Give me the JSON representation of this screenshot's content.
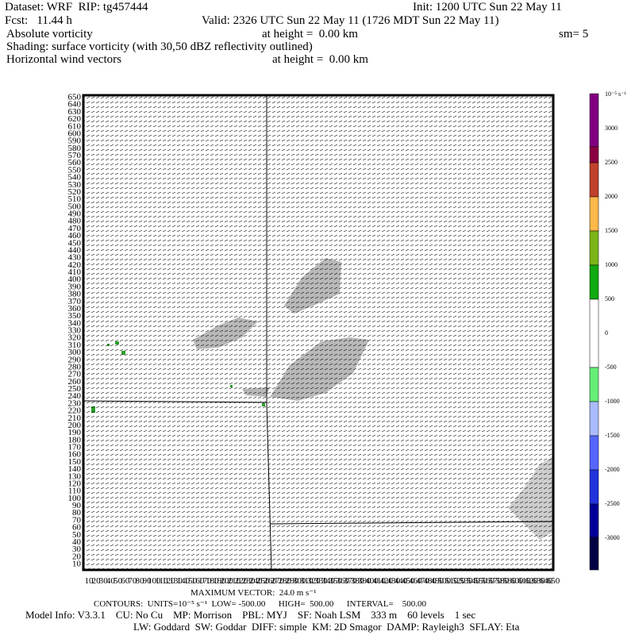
{
  "header": {
    "dataset": "Dataset: WRF  RIP: tg457444",
    "init": "Init: 1200 UTC Sun 22 May 11",
    "forecast": "Fcst:   11.44 h",
    "valid": "Valid: 2326 UTC Sun 22 May 11 (1726 MDT Sun 22 May 11)",
    "field": "Absolute vorticity",
    "field_height": "at height =  0.00 km",
    "smoothing": "sm= 5",
    "shading": "Shading: surface vorticity (with 30,50 dBZ reflectivity outlined)",
    "vectors": "Horizontal wind vectors",
    "vectors_height": "at height =  0.00 km"
  },
  "plot": {
    "y_axis_labels": [
      650,
      640,
      630,
      620,
      610,
      600,
      590,
      580,
      570,
      560,
      550,
      540,
      530,
      520,
      510,
      500,
      490,
      480,
      470,
      460,
      450,
      440,
      430,
      420,
      410,
      400,
      390,
      380,
      370,
      360,
      350,
      340,
      330,
      320,
      310,
      300,
      290,
      280,
      270,
      260,
      250,
      240,
      230,
      220,
      210,
      200,
      190,
      180,
      170,
      160,
      150,
      140,
      130,
      120,
      110,
      100,
      90,
      80,
      70,
      60,
      50,
      40,
      30,
      20,
      10
    ],
    "x_axis_labels": [
      10,
      20,
      30,
      40,
      50,
      60,
      70,
      80,
      90,
      100,
      110,
      120,
      130,
      140,
      150,
      160,
      170,
      180,
      190,
      200,
      210,
      220,
      230,
      240,
      250,
      260,
      270,
      280,
      290,
      300,
      310,
      320,
      330,
      340,
      350,
      360,
      370,
      380,
      390,
      400,
      410,
      420,
      430,
      440,
      450,
      460,
      470,
      480,
      490,
      500,
      510,
      520,
      530,
      540,
      550,
      560,
      570,
      580,
      590,
      600,
      610,
      620,
      630,
      640,
      650
    ]
  },
  "colorbar": {
    "units": "10⁻⁵ s⁻¹",
    "labels": [
      3000,
      2500,
      2000,
      1500,
      1000,
      500,
      0,
      -500,
      -1000,
      -1500,
      -2000,
      -2500,
      -3000
    ]
  },
  "footer": {
    "max_vector": "MAXIMUM VECTOR:  24.0 m s⁻¹",
    "contours": "CONTOURS:  UNITS=10⁻⁵ s⁻¹  LOW= -500.00      HIGH=  500.00      INTERVAL=    500.00",
    "model_info": "Model Info: V3.3.1    CU: No Cu    MP: Morrison    PBL: MYJ    SF: Noah LSM    333 m    60 levels    1 sec",
    "physics": "LW: Goddard  SW: Goddar  DIFF: simple  KM: 2D Smagor  DAMP: Rayleigh3  SFLAY: Eta"
  }
}
